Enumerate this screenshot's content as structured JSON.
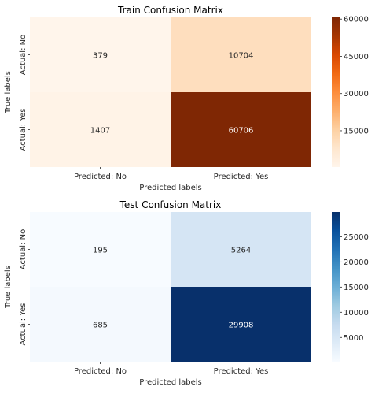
{
  "chart_data": [
    {
      "type": "heatmap",
      "title": "Train Confusion Matrix",
      "xlabel": "Predicted labels",
      "ylabel": "True labels",
      "x_categories": [
        "Predicted: No",
        "Predicted: Yes"
      ],
      "y_categories": [
        "Actual: No",
        "Actual: Yes"
      ],
      "values": [
        [
          379,
          10704
        ],
        [
          1407,
          60706
        ]
      ],
      "colormap": "Oranges",
      "colorbar": {
        "ticks": [
          15000,
          30000,
          45000,
          60000
        ],
        "min": 379,
        "max": 60706
      },
      "colors": {
        "low": "#fff5eb",
        "high": "#7f2704",
        "text_dark": "#262626",
        "text_light": "#ffffff"
      }
    },
    {
      "type": "heatmap",
      "title": "Test Confusion Matrix",
      "xlabel": "Predicted labels",
      "ylabel": "True labels",
      "x_categories": [
        "Predicted: No",
        "Predicted: Yes"
      ],
      "y_categories": [
        "Actual: No",
        "Actual: Yes"
      ],
      "values": [
        [
          195,
          5264
        ],
        [
          685,
          29908
        ]
      ],
      "colormap": "Blues",
      "colorbar": {
        "ticks": [
          5000,
          10000,
          15000,
          20000,
          25000
        ],
        "min": 195,
        "max": 29908
      },
      "colors": {
        "low": "#f7fbff",
        "high": "#08306b",
        "text_dark": "#262626",
        "text_light": "#ffffff"
      }
    }
  ]
}
